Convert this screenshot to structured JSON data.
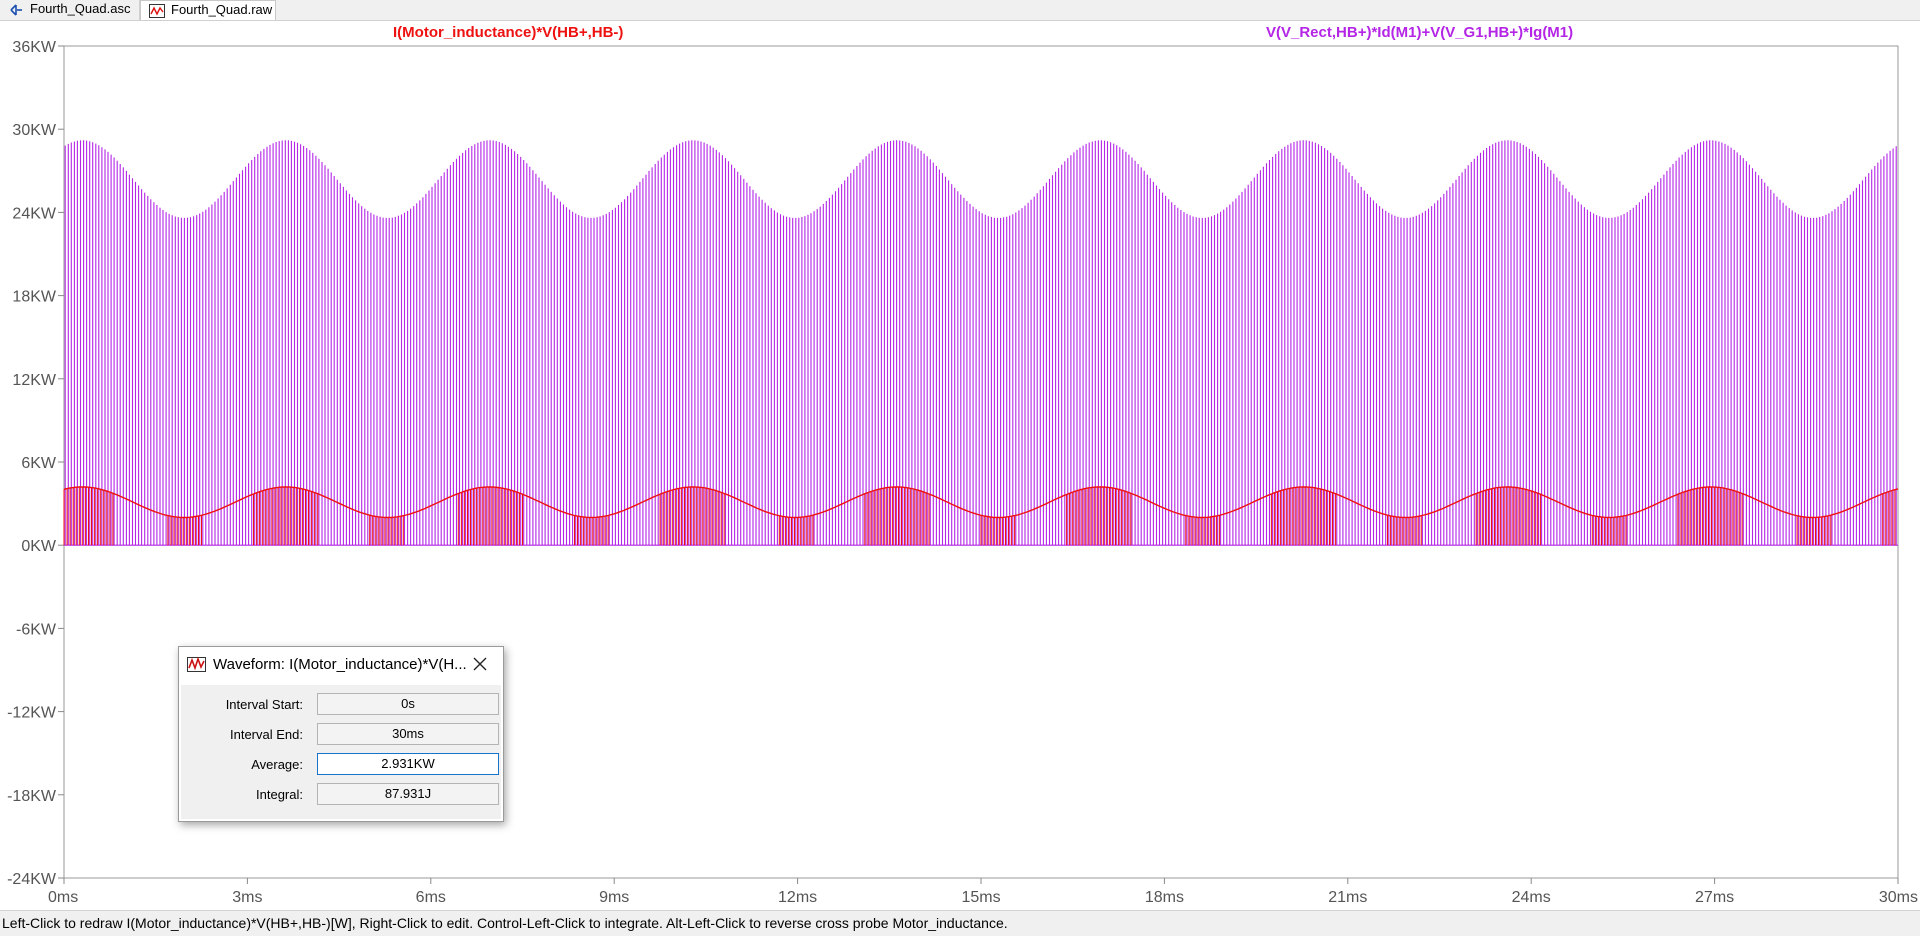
{
  "tabs": [
    {
      "label": "Fourth_Quad.asc",
      "icon": "schematic-icon",
      "active": false
    },
    {
      "label": "Fourth_Quad.raw",
      "icon": "waveform-icon",
      "active": true
    }
  ],
  "plot": {
    "trace_titles": [
      "I(Motor_inductance)*V(HB+,HB-)",
      "V(V_Rect,HB+)*Id(M1)+V(V_G1,HB+)*Ig(M1)"
    ],
    "colors": {
      "trace1": "#ee1111",
      "trace2": "#b425e6",
      "grid": "#c8c8c8",
      "ticks": "#555555"
    }
  },
  "chart_data": {
    "type": "line",
    "xlabel": "",
    "ylabel": "",
    "xlim": [
      0,
      30
    ],
    "ylim": [
      -24,
      36
    ],
    "x_tick_labels": [
      "0ms",
      "3ms",
      "6ms",
      "9ms",
      "12ms",
      "15ms",
      "18ms",
      "21ms",
      "24ms",
      "27ms",
      "30ms"
    ],
    "y_tick_labels": [
      "36KW",
      "30KW",
      "24KW",
      "18KW",
      "12KW",
      "6KW",
      "0KW",
      "-6KW",
      "-12KW",
      "-18KW",
      "-24KW"
    ],
    "x_tick_values_ms": [
      0,
      3,
      6,
      9,
      12,
      15,
      18,
      21,
      24,
      27,
      30
    ],
    "y_tick_values_kw": [
      36,
      30,
      24,
      18,
      12,
      6,
      0,
      -6,
      -12,
      -18,
      -24
    ],
    "series": [
      {
        "name": "I(Motor_inductance)*V(HB+,HB-)",
        "color": "#ee1111",
        "envelope_period_ms": 3.33,
        "envelope_peak_kw": 4.2,
        "envelope_trough_kw": 2.0,
        "baseline_kw": 0
      },
      {
        "name": "V(V_Rect,HB+)*Id(M1)+V(V_G1,HB+)*Ig(M1)",
        "color": "#b425e6",
        "envelope_period_ms": 3.33,
        "envelope_peak_kw": 29.2,
        "envelope_trough_kw": 23.6,
        "baseline_kw": 0,
        "pulse_period_ms": 0.05
      }
    ]
  },
  "dialog": {
    "title": "Waveform: I(Motor_inductance)*V(H...",
    "fields": [
      {
        "label": "Interval Start:",
        "value": "0s"
      },
      {
        "label": "Interval End:",
        "value": "30ms"
      },
      {
        "label": "Average:",
        "value": "2.931KW"
      },
      {
        "label": "Integral:",
        "value": "87.931J"
      }
    ]
  },
  "status": {
    "text": "Left-Click to redraw I(Motor_inductance)*V(HB+,HB-)[W],  Right-Click to edit. Control-Left-Click to integrate. Alt-Left-Click to reverse cross probe Motor_inductance."
  }
}
